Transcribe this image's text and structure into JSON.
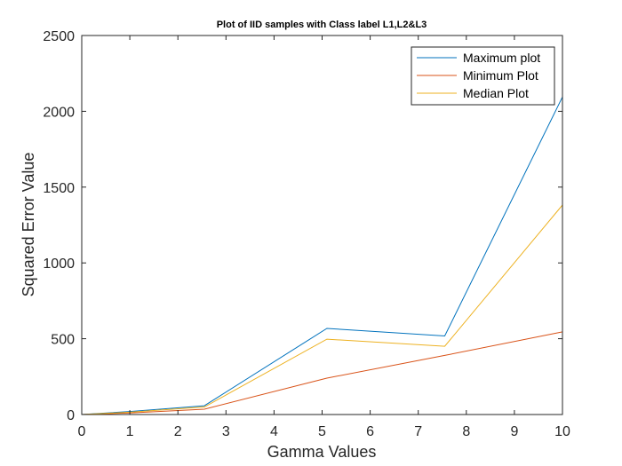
{
  "chart_data": {
    "type": "line",
    "title": "Plot of IID samples with Class label L1,L2&L3",
    "xlabel": "Gamma Values",
    "ylabel": "Squared Error Value",
    "xlim": [
      0,
      10
    ],
    "ylim": [
      0,
      2500
    ],
    "xticks": [
      0,
      1,
      2,
      3,
      4,
      5,
      6,
      7,
      8,
      9,
      10
    ],
    "yticks": [
      0,
      500,
      1000,
      1500,
      2000,
      2500
    ],
    "grid": false,
    "legend_position": "top-right",
    "series": [
      {
        "name": "Maximum plot",
        "color": "#0072BD",
        "x": [
          0,
          1,
          2.55,
          5.1,
          7.55,
          10
        ],
        "y": [
          0,
          20,
          58,
          568,
          518,
          2095
        ]
      },
      {
        "name": "Minimum Plot",
        "color": "#D95319",
        "x": [
          0,
          1,
          2.55,
          5.1,
          7.55,
          10
        ],
        "y": [
          0,
          10,
          35,
          240,
          390,
          545
        ]
      },
      {
        "name": "Median Plot",
        "color": "#EDB120",
        "x": [
          0,
          1,
          2.55,
          5.1,
          7.55,
          10
        ],
        "y": [
          0,
          15,
          50,
          497,
          450,
          1382
        ]
      }
    ]
  }
}
